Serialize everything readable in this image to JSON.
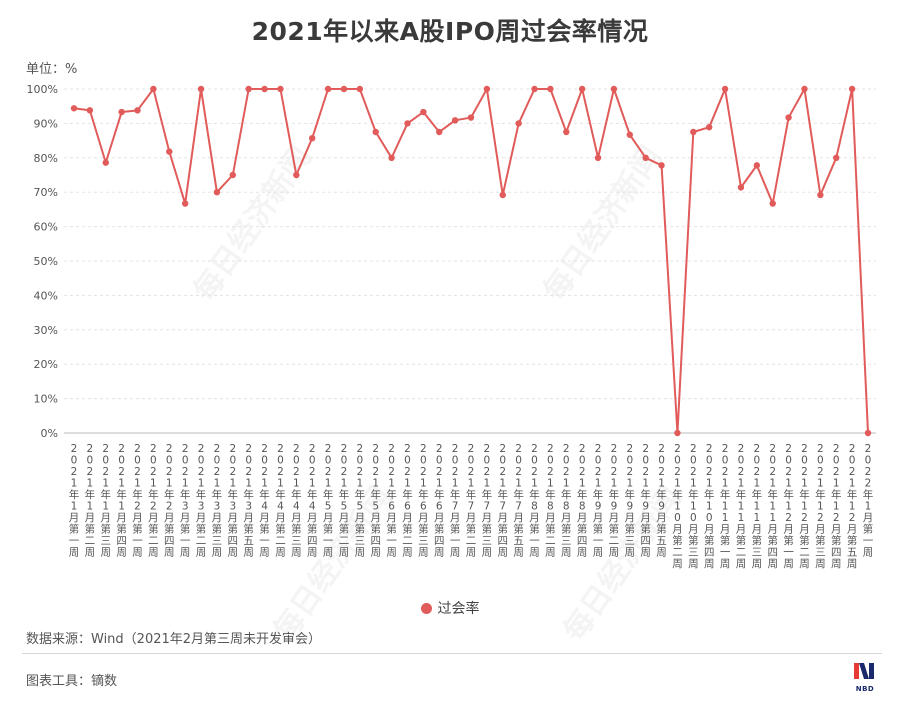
{
  "title": "2021年以来A股IPO周过会率情况",
  "unit_label": "单位：%",
  "source": "数据来源：Wind（2021年2月第三周未开发审会）",
  "tool": "图表工具：镝数",
  "logo_text": "NBD",
  "watermark": "每日经济新闻",
  "colors": {
    "line": "#e05b59",
    "grid": "#e3e3e3",
    "axis": "#bbbbbb"
  },
  "chart_data": {
    "type": "line",
    "title": "2021年以来A股IPO周过会率情况",
    "ylabel": "",
    "ylim": [
      0,
      100
    ],
    "yticks": [
      "0%",
      "10%",
      "20%",
      "30%",
      "40%",
      "50%",
      "60%",
      "70%",
      "80%",
      "90%",
      "100%"
    ],
    "legend": "bottom",
    "grid": true,
    "categories": [
      "2021年1月第一周",
      "2021年1月第二周",
      "2021年1月第三周",
      "2021年1月第四周",
      "2021年2月第一周",
      "2021年2月第二周",
      "2021年2月第四周",
      "2021年3月第一周",
      "2021年3月第二周",
      "2021年3月第三周",
      "2021年3月第四周",
      "2021年3月第五周",
      "2021年4月第一周",
      "2021年4月第二周",
      "2021年4月第三周",
      "2021年4月第四周",
      "2021年5月第一周",
      "2021年5月第二周",
      "2021年5月第三周",
      "2021年5月第四周",
      "2021年6月第一周",
      "2021年6月第二周",
      "2021年6月第三周",
      "2021年6月第四周",
      "2021年7月第一周",
      "2021年7月第二周",
      "2021年7月第三周",
      "2021年7月第四周",
      "2021年7月第五周",
      "2021年8月第一周",
      "2021年8月第二周",
      "2021年8月第三周",
      "2021年8月第四周",
      "2021年9月第一周",
      "2021年9月第二周",
      "2021年9月第三周",
      "2021年9月第四周",
      "2021年9月第五周",
      "2021年10月第二周",
      "2021年10月第三周",
      "2021年10月第四周",
      "2021年11月第一周",
      "2021年11月第二周",
      "2021年11月第三周",
      "2021年11月第四周",
      "2021年12月第一周",
      "2021年12月第二周",
      "2021年12月第三周",
      "2021年12月第四周",
      "2021年12月第五周",
      "2022年1月第一周"
    ],
    "series": [
      {
        "name": "过会率",
        "values": [
          94.4,
          93.8,
          78.6,
          93.3,
          93.8,
          100,
          81.8,
          66.7,
          100,
          70,
          75,
          100,
          100,
          100,
          75,
          85.7,
          100,
          100,
          100,
          87.5,
          80,
          90,
          93.3,
          87.5,
          90.9,
          91.7,
          100,
          69.2,
          90,
          100,
          100,
          87.5,
          100,
          80,
          100,
          86.7,
          80,
          77.8,
          0,
          87.5,
          88.9,
          100,
          71.4,
          77.8,
          66.7,
          91.7,
          100,
          69.2,
          80,
          100,
          0
        ]
      }
    ]
  }
}
